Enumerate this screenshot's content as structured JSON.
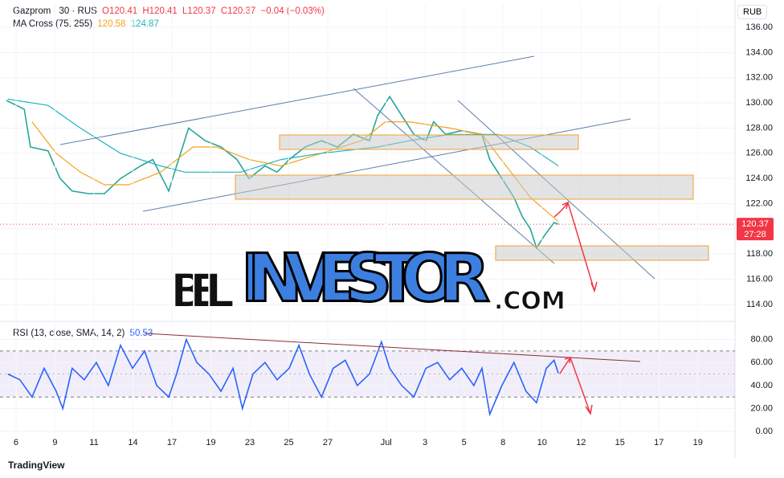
{
  "currency": "RUB",
  "brand": "TradingView",
  "watermark": [
    "BEL",
    "INVESTOR",
    ".COM"
  ],
  "chart_data": [
    {
      "type": "line",
      "symbol": "Gazprom · 30 · RUS",
      "ohlc": [
        "O120.41",
        "H120.41",
        "L120.37",
        "C120.37"
      ],
      "change": "−0.04 (−0.03%)",
      "indicator": "MA Cross (75, 255)",
      "indicator_values": [
        "120.58",
        "124.87"
      ],
      "last_price": {
        "value": 120.37,
        "label": "120.37"
      },
      "countdown": "27:28",
      "xlim": [
        -0.412,
        18.454
      ],
      "ylim": [
        112.85,
        137.85
      ],
      "yticks": [
        {
          "value": 114,
          "label": "114.00"
        },
        {
          "value": 116,
          "label": "116.00"
        },
        {
          "value": 118,
          "label": "118.00"
        },
        {
          "value": 120,
          "label": "120.00"
        },
        {
          "value": 122,
          "label": "122.00"
        },
        {
          "value": 124,
          "label": "124.00"
        },
        {
          "value": 126,
          "label": "126.00"
        },
        {
          "value": 128,
          "label": "128.00"
        },
        {
          "value": 130,
          "label": "130.00"
        },
        {
          "value": 132,
          "label": "132.00"
        },
        {
          "value": 134,
          "label": "134.00"
        },
        {
          "value": 136,
          "label": "136.00"
        }
      ],
      "series": [
        {
          "color": "#26a69a",
          "x": [
            -0.25,
            0.21,
            0.37,
            0.82,
            1.13,
            1.44,
            1.86,
            2.27,
            2.68,
            3.2,
            3.51,
            3.92,
            4.12,
            4.43,
            4.85,
            5.26,
            5.67,
            5.98,
            6.39,
            6.7,
            7.01,
            7.42,
            7.84,
            8.25,
            8.66,
            9.07,
            9.28,
            9.59,
            9.9,
            10.21,
            10.52,
            10.72,
            11.03,
            11.44,
            11.96,
            12.16,
            12.47,
            12.78,
            12.99,
            13.2,
            13.36,
            13.57,
            13.81,
            13.92
          ],
          "values": [
            130.2,
            129.5,
            126.5,
            126.2,
            124,
            123,
            122.8,
            122.8,
            124,
            125,
            125.5,
            123,
            125,
            128,
            127,
            126.5,
            125.5,
            124,
            125,
            124.5,
            125.5,
            126.5,
            127,
            126.5,
            127.5,
            127,
            129,
            130.5,
            129,
            127.5,
            127,
            128.5,
            127.5,
            127.8,
            127.5,
            125.5,
            124,
            122.5,
            121,
            120,
            118.5,
            119.5,
            120.5,
            120.37
          ]
        },
        {
          "color": "#f7a21b",
          "x": [
            0.41,
            1.03,
            1.65,
            2.27,
            2.89,
            3.71,
            4.54,
            5.15,
            5.98,
            6.8,
            7.84,
            8.87,
            9.48,
            10.1,
            11.13,
            11.96,
            12.58,
            13.2,
            13.92
          ],
          "values": [
            128.5,
            126,
            124.5,
            123.5,
            123.5,
            124.5,
            126.5,
            126.5,
            125.5,
            125,
            126,
            127,
            128.5,
            128.5,
            128,
            127.5,
            125,
            122.5,
            120.58
          ]
        },
        {
          "color": "#22b5bf",
          "x": [
            -0.21,
            0.82,
            1.65,
            2.68,
            3.71,
            4.33,
            5.77,
            6.8,
            7.84,
            9.28,
            10.1,
            11.13,
            12.37,
            13.2,
            13.92
          ],
          "values": [
            130.3,
            129.8,
            128,
            126,
            125,
            124.5,
            124.5,
            125.5,
            126,
            126.5,
            127,
            127.5,
            127.5,
            126.5,
            125
          ]
        }
      ]
    },
    {
      "type": "line",
      "indicator": "RSI (13, close, SMA, 14, 2)",
      "indicator_value": "50.53",
      "xlim": [
        -0.412,
        18.454
      ],
      "ylim": [
        -2,
        93
      ],
      "band": [
        30,
        70
      ],
      "midline": 50,
      "yticks": [
        {
          "value": 0,
          "label": "0.00"
        },
        {
          "value": 20,
          "label": "20.00"
        },
        {
          "value": 40,
          "label": "40.00"
        },
        {
          "value": 60,
          "label": "60.00"
        },
        {
          "value": 80,
          "label": "80.00"
        }
      ],
      "xticks": [
        {
          "value": 0,
          "label": "6"
        },
        {
          "value": 1,
          "label": "9"
        },
        {
          "value": 2,
          "label": "11"
        },
        {
          "value": 3,
          "label": "14"
        },
        {
          "value": 4,
          "label": "17"
        },
        {
          "value": 5,
          "label": "19"
        },
        {
          "value": 6,
          "label": "23"
        },
        {
          "value": 7,
          "label": "25"
        },
        {
          "value": 8,
          "label": "27"
        },
        {
          "value": 9.5,
          "label": "Jul"
        },
        {
          "value": 10.5,
          "label": "3"
        },
        {
          "value": 11.5,
          "label": "5"
        },
        {
          "value": 12.5,
          "label": "8"
        },
        {
          "value": 13.5,
          "label": "10"
        },
        {
          "value": 14.5,
          "label": "12"
        },
        {
          "value": 15.5,
          "label": "15"
        },
        {
          "value": 16.5,
          "label": "17"
        },
        {
          "value": 17.5,
          "label": "19"
        }
      ],
      "series": [
        {
          "color": "#2962ff",
          "x": [
            -0.21,
            0.1,
            0.41,
            0.72,
            1.03,
            1.2,
            1.44,
            1.75,
            2.06,
            2.37,
            2.68,
            2.99,
            3.3,
            3.61,
            3.92,
            4.12,
            4.37,
            4.64,
            4.95,
            5.26,
            5.57,
            5.81,
            6.08,
            6.39,
            6.7,
            7.01,
            7.26,
            7.53,
            7.84,
            8.14,
            8.45,
            8.76,
            9.07,
            9.38,
            9.59,
            9.9,
            10.21,
            10.52,
            10.82,
            11.13,
            11.44,
            11.75,
            11.96,
            12.16,
            12.47,
            12.78,
            13.09,
            13.36,
            13.61,
            13.81,
            13.92
          ],
          "values": [
            50,
            45,
            30,
            55,
            35,
            20,
            55,
            45,
            60,
            40,
            75,
            55,
            70,
            40,
            30,
            50,
            80,
            60,
            50,
            35,
            55,
            20,
            50,
            60,
            45,
            55,
            75,
            50,
            30,
            55,
            62,
            40,
            50,
            78,
            55,
            40,
            30,
            55,
            60,
            45,
            55,
            40,
            55,
            15,
            40,
            60,
            35,
            25,
            55,
            62,
            50.53
          ]
        }
      ]
    }
  ]
}
